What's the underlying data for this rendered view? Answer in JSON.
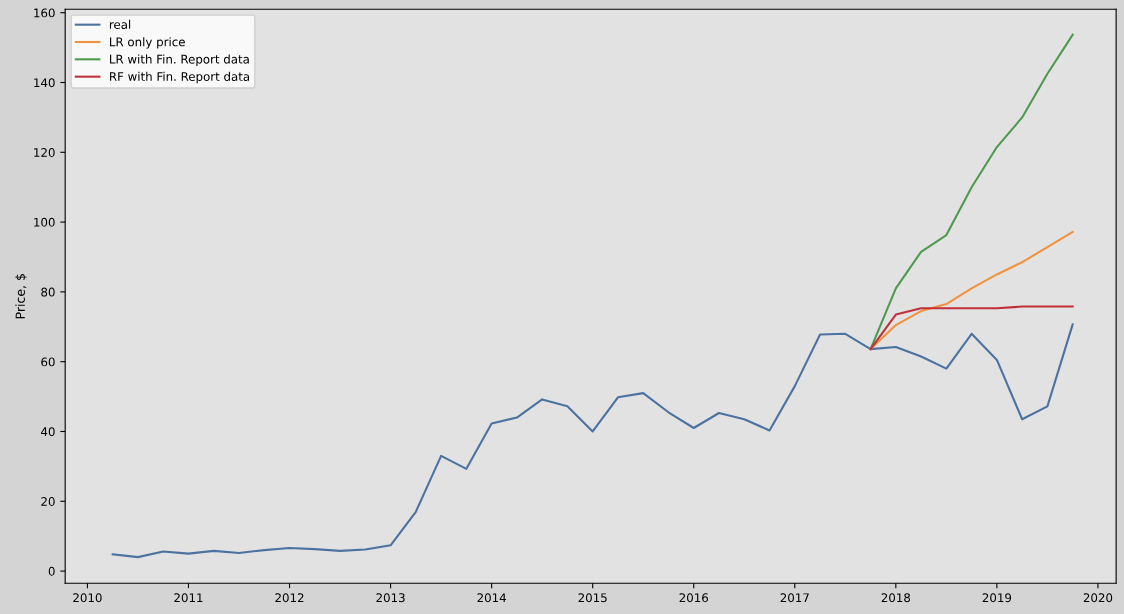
{
  "chart_data": {
    "type": "line",
    "ylabel": "Price, $",
    "xlim": [
      2009.78,
      2020.18
    ],
    "xticks": [
      2010,
      2011,
      2012,
      2013,
      2014,
      2015,
      2016,
      2017,
      2018,
      2019,
      2020
    ],
    "ylim": [
      -3.5,
      161
    ],
    "yticks": [
      0,
      20,
      40,
      60,
      80,
      100,
      120,
      140,
      160
    ],
    "grid": false,
    "legend": "top left",
    "marker": "none",
    "line_style": "solid",
    "series": [
      {
        "name": "real",
        "color": "#4c72a0",
        "x": [
          2010.25,
          2010.5,
          2010.75,
          2011,
          2011.25,
          2011.5,
          2011.75,
          2012,
          2012.25,
          2012.5,
          2012.75,
          2013,
          2013.25,
          2013.5,
          2013.75,
          2014,
          2014.25,
          2014.5,
          2014.75,
          2015,
          2015.25,
          2015.5,
          2015.75,
          2016,
          2016.25,
          2016.5,
          2016.75,
          2017,
          2017.25,
          2017.5,
          2017.75,
          2018,
          2018.25,
          2018.5,
          2018.75,
          2019,
          2019.25,
          2019.5,
          2019.75
        ],
        "values": [
          4.8,
          4.0,
          5.6,
          5.0,
          5.8,
          5.2,
          6.0,
          6.6,
          6.3,
          5.8,
          6.2,
          7.4,
          17,
          33,
          29.3,
          42.3,
          44,
          49.2,
          47.2,
          40,
          49.8,
          51,
          45.5,
          41,
          45.3,
          43.5,
          40.3,
          53,
          67.8,
          68,
          63.6,
          64.2,
          61.5,
          58,
          68,
          60.5,
          43.5,
          47.2,
          70.7
        ]
      },
      {
        "name": "LR only price",
        "color": "#f0923e",
        "x": [
          2017.75,
          2018,
          2018.25,
          2018.5,
          2018.75,
          2019,
          2019.25,
          2019.5,
          2019.75
        ],
        "values": [
          63.6,
          70.5,
          74.5,
          76.5,
          81,
          85,
          88.5,
          92.8,
          97.2
        ]
      },
      {
        "name": "LR with Fin. Report data",
        "color": "#4e9a4e",
        "x": [
          2017.75,
          2018,
          2018.25,
          2018.5,
          2018.75,
          2019,
          2019.25,
          2019.5,
          2019.75
        ],
        "values": [
          63.6,
          81,
          91.5,
          96.3,
          110,
          121.5,
          130,
          142.5,
          153.7
        ]
      },
      {
        "name": "RF with Fin. Report data",
        "color": "#c0303a",
        "x": [
          2017.75,
          2018,
          2018.25,
          2018.5,
          2018.75,
          2019,
          2019.25,
          2019.5,
          2019.75
        ],
        "values": [
          63.6,
          73.5,
          75.3,
          75.3,
          75.3,
          75.3,
          75.8,
          75.8,
          75.8
        ]
      }
    ]
  }
}
